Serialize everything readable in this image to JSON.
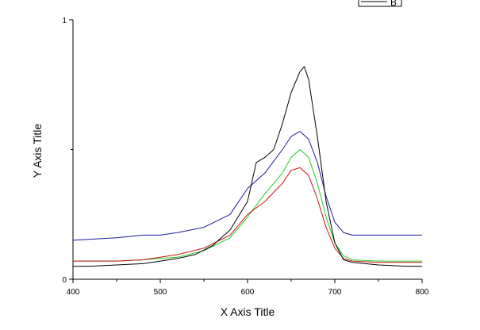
{
  "chart_data": {
    "type": "line",
    "title": "",
    "xlabel": "X Axis Title",
    "ylabel": "Y Axis Title",
    "xlim": [
      400,
      800
    ],
    "ylim": [
      0,
      1
    ],
    "x_ticks": [
      400,
      500,
      600,
      700,
      800
    ],
    "y_ticks": [
      0,
      1
    ],
    "x_tick_labels": [
      "400",
      "500",
      "600",
      "700",
      "800"
    ],
    "y_tick_labels": [
      "0",
      "1"
    ],
    "grid": false,
    "legend": {
      "placement": "top-right",
      "entries": [
        "B"
      ]
    },
    "series": [
      {
        "name": "B",
        "color": "#000000",
        "x": [
          400,
          420,
          450,
          480,
          500,
          520,
          540,
          560,
          580,
          600,
          610,
          620,
          630,
          640,
          650,
          660,
          665,
          670,
          680,
          690,
          700,
          710,
          720,
          750,
          780,
          800
        ],
        "y": [
          0.05,
          0.05,
          0.055,
          0.06,
          0.07,
          0.08,
          0.095,
          0.13,
          0.19,
          0.3,
          0.45,
          0.47,
          0.5,
          0.6,
          0.72,
          0.8,
          0.82,
          0.77,
          0.55,
          0.3,
          0.14,
          0.075,
          0.065,
          0.055,
          0.05,
          0.05
        ]
      },
      {
        "color": "#1a1aa0",
        "x": [
          400,
          450,
          480,
          500,
          520,
          550,
          580,
          600,
          620,
          640,
          650,
          660,
          670,
          680,
          690,
          700,
          710,
          720,
          750,
          780,
          800
        ],
        "y": [
          0.15,
          0.16,
          0.17,
          0.17,
          0.18,
          0.2,
          0.25,
          0.35,
          0.41,
          0.5,
          0.55,
          0.57,
          0.54,
          0.45,
          0.32,
          0.22,
          0.18,
          0.17,
          0.17,
          0.17,
          0.17
        ]
      },
      {
        "color": "#22cc22",
        "x": [
          400,
          450,
          480,
          500,
          520,
          550,
          580,
          600,
          620,
          640,
          650,
          660,
          670,
          680,
          690,
          700,
          710,
          720,
          750,
          780,
          800
        ],
        "y": [
          0.07,
          0.07,
          0.075,
          0.08,
          0.085,
          0.11,
          0.16,
          0.24,
          0.33,
          0.41,
          0.47,
          0.5,
          0.47,
          0.37,
          0.24,
          0.14,
          0.09,
          0.075,
          0.07,
          0.07,
          0.07
        ]
      },
      {
        "color": "#cc1111",
        "x": [
          400,
          450,
          480,
          500,
          520,
          550,
          580,
          600,
          620,
          640,
          650,
          660,
          670,
          680,
          690,
          700,
          710,
          720,
          750,
          780,
          800
        ],
        "y": [
          0.07,
          0.07,
          0.075,
          0.085,
          0.095,
          0.12,
          0.17,
          0.25,
          0.3,
          0.37,
          0.42,
          0.43,
          0.4,
          0.31,
          0.2,
          0.12,
          0.08,
          0.07,
          0.065,
          0.065,
          0.065
        ]
      }
    ]
  }
}
